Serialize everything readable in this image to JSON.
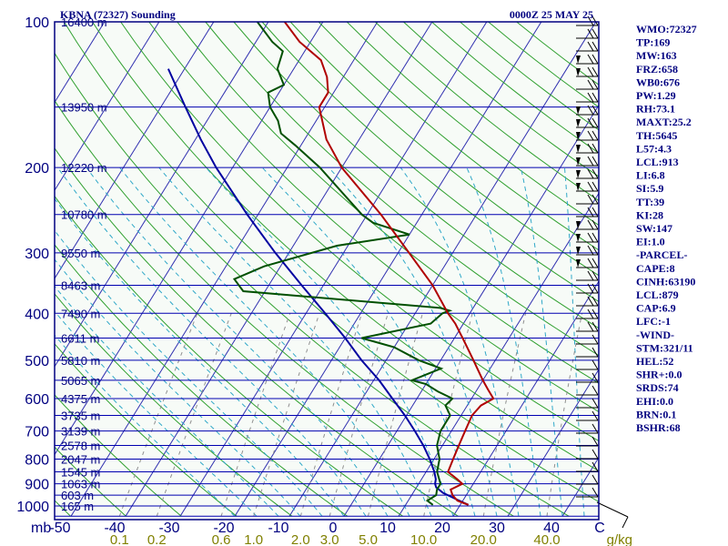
{
  "chart_data": {
    "type": "line",
    "title": "KBNA (72327) Sounding",
    "valid_time": "0000Z 25 MAY 25",
    "pressure_unit_label": "mb",
    "mixing_ratio_unit_label": "g/kg",
    "p_ticks": [
      100,
      200,
      300,
      400,
      500,
      600,
      700,
      800,
      900,
      1000
    ],
    "t_ticks": [
      "-50",
      "-40",
      "-30",
      "-20",
      "-10",
      "0",
      "10",
      "20",
      "30",
      "40",
      "C"
    ],
    "w_ticks": [
      "0.1",
      "0.2",
      "0.6",
      "1.0",
      "2.0",
      "3.0",
      "5.0",
      "10.0",
      "20.0",
      "40.0"
    ],
    "height_labels": [
      {
        "p": 100,
        "text": "16400 m"
      },
      {
        "p": 150,
        "text": "13950 m"
      },
      {
        "p": 200,
        "text": "12220 m"
      },
      {
        "p": 250,
        "text": "10780 m"
      },
      {
        "p": 300,
        "text": "9550 m"
      },
      {
        "p": 350,
        "text": "8463 m"
      },
      {
        "p": 400,
        "text": "7490 m"
      },
      {
        "p": 450,
        "text": "6611 m"
      },
      {
        "p": 500,
        "text": "5810 m"
      },
      {
        "p": 550,
        "text": "5065 m"
      },
      {
        "p": 600,
        "text": "4375 m"
      },
      {
        "p": 650,
        "text": "3735 m"
      },
      {
        "p": 700,
        "text": "3139 m"
      },
      {
        "p": 750,
        "text": "2578 m"
      },
      {
        "p": 800,
        "text": "2047 m"
      },
      {
        "p": 850,
        "text": "1545 m"
      },
      {
        "p": 900,
        "text": "1063 m"
      },
      {
        "p": 950,
        "text": "603 m"
      },
      {
        "p": 1000,
        "text": "165 m"
      }
    ],
    "temperature": {
      "color": "#b00000",
      "points": [
        [
          995,
          21.5
        ],
        [
          975,
          19.0
        ],
        [
          950,
          17.5
        ],
        [
          925,
          16.5
        ],
        [
          900,
          18.0
        ],
        [
          880,
          16.5
        ],
        [
          850,
          14.0
        ],
        [
          800,
          13.5
        ],
        [
          750,
          13.0
        ],
        [
          700,
          12.5
        ],
        [
          650,
          12.0
        ],
        [
          620,
          12.5
        ],
        [
          600,
          14.0
        ],
        [
          575,
          12.0
        ],
        [
          550,
          10.0
        ],
        [
          500,
          6.0
        ],
        [
          450,
          1.5
        ],
        [
          420,
          -1.5
        ],
        [
          400,
          -4.0
        ],
        [
          350,
          -10.0
        ],
        [
          300,
          -18.0
        ],
        [
          250,
          -27.5
        ],
        [
          200,
          -40.0
        ],
        [
          175,
          -46.0
        ],
        [
          150,
          -51.0
        ],
        [
          140,
          -51.0
        ],
        [
          130,
          -53.0
        ],
        [
          120,
          -56.0
        ],
        [
          110,
          -62.0
        ],
        [
          100,
          -67.0
        ]
      ]
    },
    "dewpoint": {
      "color": "#005000",
      "points": [
        [
          995,
          15.0
        ],
        [
          975,
          13.5
        ],
        [
          950,
          14.5
        ],
        [
          925,
          14.0
        ],
        [
          900,
          14.0
        ],
        [
          850,
          12.0
        ],
        [
          800,
          11.0
        ],
        [
          750,
          9.0
        ],
        [
          700,
          8.0
        ],
        [
          650,
          8.0
        ],
        [
          620,
          6.0
        ],
        [
          600,
          6.5
        ],
        [
          580,
          3.0
        ],
        [
          560,
          0.0
        ],
        [
          550,
          -3.0
        ],
        [
          520,
          1.0
        ],
        [
          500,
          -4.0
        ],
        [
          470,
          -10.0
        ],
        [
          450,
          -17.0
        ],
        [
          420,
          -6.0
        ],
        [
          400,
          -5.0
        ],
        [
          395,
          -4.0
        ],
        [
          390,
          -6.0
        ],
        [
          360,
          -44.0
        ],
        [
          340,
          -47.0
        ],
        [
          320,
          -43.0
        ],
        [
          290,
          -32.0
        ],
        [
          275,
          -20.0
        ],
        [
          260,
          -28.0
        ],
        [
          250,
          -31.0
        ],
        [
          200,
          -44.0
        ],
        [
          180,
          -51.0
        ],
        [
          170,
          -55.0
        ],
        [
          160,
          -57.0
        ],
        [
          150,
          -60.0
        ],
        [
          140,
          -62.0
        ],
        [
          135,
          -60.0
        ],
        [
          125,
          -63.0
        ],
        [
          115,
          -64.0
        ],
        [
          110,
          -67.0
        ],
        [
          100,
          -72.0
        ]
      ]
    },
    "parcel": {
      "color": "#0000a0",
      "points": [
        [
          995,
          21.5
        ],
        [
          970,
          18.8
        ],
        [
          940,
          15.5
        ],
        [
          915,
          13.6
        ],
        [
          900,
          13.0
        ],
        [
          880,
          12.6
        ],
        [
          850,
          11.5
        ],
        [
          800,
          9.2
        ],
        [
          750,
          6.5
        ],
        [
          700,
          3.3
        ],
        [
          650,
          -0.3
        ],
        [
          600,
          -4.5
        ],
        [
          550,
          -9.0
        ],
        [
          500,
          -14.5
        ],
        [
          450,
          -20.0
        ],
        [
          400,
          -26.5
        ],
        [
          350,
          -34.0
        ],
        [
          300,
          -42.5
        ],
        [
          250,
          -52.0
        ],
        [
          200,
          -63.0
        ],
        [
          175,
          -69.0
        ],
        [
          150,
          -75.5
        ],
        [
          125,
          -83.0
        ]
      ]
    },
    "indices": [
      "WMO:72327",
      "TP:169",
      "MW:163",
      "FRZ:658",
      "WB0:676",
      "PW:1.29",
      "RH:73.1",
      "MAXT:25.2",
      "TH:5645",
      "L57:4.3",
      "LCL:913",
      "LI:6.8",
      "SI:5.9",
      "TT:39",
      "KI:28",
      "SW:147",
      "EI:1.0",
      "-PARCEL-",
      "CAPE:8",
      "CINH:63190",
      "LCL:879",
      "CAP:6.9",
      "LFC:-1",
      "-WIND-",
      "STM:321/11",
      "HEL:52",
      "SHR+:0.0",
      "SRDS:74",
      "EHI:0.0",
      "BRN:0.1",
      "BSHR:68"
    ],
    "xlim": [
      -50,
      50
    ],
    "ylim": [
      1050,
      100
    ],
    "y_scale": "log",
    "grid": true
  },
  "colors": {
    "frame": "#000080",
    "isobar": "#0000b0",
    "isotherm": "#3030b0",
    "dry_adiabat": "#30a030",
    "moist_adiabat": "#30a8c8",
    "mixing_ratio": "#909090",
    "wind_barb": "#000000"
  }
}
